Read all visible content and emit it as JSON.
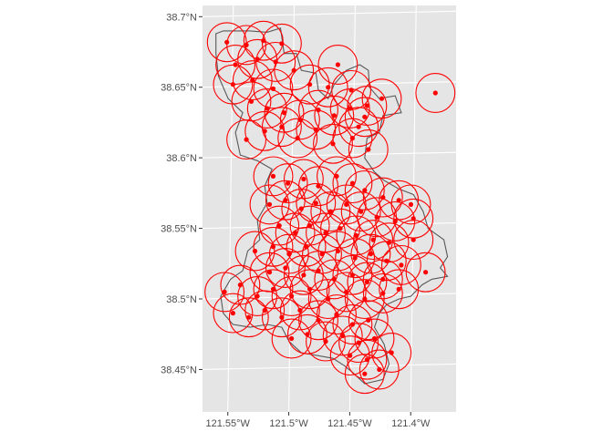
{
  "map": {
    "panel_background": "#e5e5e5",
    "grid_color": "#ffffff",
    "boundary_color": "#595959",
    "marker_color": "#ff0000",
    "y_ticks": [
      {
        "value": 38.7,
        "label": "38.7°N"
      },
      {
        "value": 38.65,
        "label": "38.65°N"
      },
      {
        "value": 38.6,
        "label": "38.6°N"
      },
      {
        "value": 38.55,
        "label": "38.55°N"
      },
      {
        "value": 38.5,
        "label": "38.5°N"
      },
      {
        "value": 38.45,
        "label": "38.45°N"
      }
    ],
    "x_ticks": [
      {
        "value": -121.55,
        "label": "121.55°W"
      },
      {
        "value": -121.5,
        "label": "121.5°W"
      },
      {
        "value": -121.45,
        "label": "121.45°W"
      },
      {
        "value": -121.4,
        "label": "121.4°W"
      }
    ],
    "lon_range": [
      -121.573,
      -121.365
    ],
    "lat_range": [
      38.418,
      38.706
    ],
    "buffer_radius_deg": 0.016,
    "sites": [
      [
        -121.553,
        38.68
      ],
      [
        -121.537,
        38.678
      ],
      [
        -121.523,
        38.681
      ],
      [
        -121.508,
        38.679
      ],
      [
        -121.546,
        38.664
      ],
      [
        -121.528,
        38.668
      ],
      [
        -121.513,
        38.666
      ],
      [
        -121.548,
        38.65
      ],
      [
        -121.532,
        38.653
      ],
      [
        -121.515,
        38.647
      ],
      [
        -121.498,
        38.66
      ],
      [
        -121.485,
        38.65
      ],
      [
        -121.462,
        38.664
      ],
      [
        -121.47,
        38.648
      ],
      [
        -121.451,
        38.646
      ],
      [
        -121.438,
        38.635
      ],
      [
        -121.426,
        38.64
      ],
      [
        -121.382,
        38.644
      ],
      [
        -121.533,
        38.638
      ],
      [
        -121.52,
        38.633
      ],
      [
        -121.506,
        38.63
      ],
      [
        -121.493,
        38.625
      ],
      [
        -121.478,
        38.632
      ],
      [
        -121.465,
        38.628
      ],
      [
        -121.452,
        38.633
      ],
      [
        -121.44,
        38.627
      ],
      [
        -121.537,
        38.611
      ],
      [
        -121.522,
        38.617
      ],
      [
        -121.508,
        38.62
      ],
      [
        -121.495,
        38.612
      ],
      [
        -121.48,
        38.618
      ],
      [
        -121.466,
        38.608
      ],
      [
        -121.45,
        38.612
      ],
      [
        -121.437,
        38.604
      ],
      [
        -121.445,
        38.62
      ],
      [
        -121.515,
        38.585
      ],
      [
        -121.503,
        38.58
      ],
      [
        -121.49,
        38.583
      ],
      [
        -121.478,
        38.578
      ],
      [
        -121.463,
        38.585
      ],
      [
        -121.45,
        38.58
      ],
      [
        -121.44,
        38.575
      ],
      [
        -121.425,
        38.57
      ],
      [
        -121.412,
        38.568
      ],
      [
        -121.402,
        38.565
      ],
      [
        -121.518,
        38.565
      ],
      [
        -121.505,
        38.568
      ],
      [
        -121.492,
        38.562
      ],
      [
        -121.48,
        38.566
      ],
      [
        -121.468,
        38.56
      ],
      [
        -121.455,
        38.565
      ],
      [
        -121.443,
        38.56
      ],
      [
        -121.43,
        38.556
      ],
      [
        -121.415,
        38.553
      ],
      [
        -121.4,
        38.555
      ],
      [
        -121.51,
        38.55
      ],
      [
        -121.497,
        38.545
      ],
      [
        -121.485,
        38.55
      ],
      [
        -121.472,
        38.545
      ],
      [
        -121.46,
        38.548
      ],
      [
        -121.447,
        38.543
      ],
      [
        -121.433,
        38.54
      ],
      [
        -121.42,
        38.538
      ],
      [
        -121.4,
        38.54
      ],
      [
        -121.53,
        38.532
      ],
      [
        -121.515,
        38.535
      ],
      [
        -121.502,
        38.53
      ],
      [
        -121.488,
        38.535
      ],
      [
        -121.475,
        38.53
      ],
      [
        -121.462,
        38.532
      ],
      [
        -121.448,
        38.527
      ],
      [
        -121.435,
        38.53
      ],
      [
        -121.422,
        38.525
      ],
      [
        -121.41,
        38.522
      ],
      [
        -121.39,
        38.517
      ],
      [
        -121.518,
        38.517
      ],
      [
        -121.505,
        38.52
      ],
      [
        -121.49,
        38.515
      ],
      [
        -121.478,
        38.518
      ],
      [
        -121.465,
        38.512
      ],
      [
        -121.45,
        38.515
      ],
      [
        -121.438,
        38.51
      ],
      [
        -121.425,
        38.512
      ],
      [
        -121.412,
        38.505
      ],
      [
        -121.555,
        38.503
      ],
      [
        -121.542,
        38.508
      ],
      [
        -121.528,
        38.5
      ],
      [
        -121.515,
        38.505
      ],
      [
        -121.5,
        38.5
      ],
      [
        -121.485,
        38.505
      ],
      [
        -121.47,
        38.498
      ],
      [
        -121.455,
        38.503
      ],
      [
        -121.44,
        38.498
      ],
      [
        -121.425,
        38.502
      ],
      [
        -121.548,
        38.488
      ],
      [
        -121.535,
        38.485
      ],
      [
        -121.522,
        38.49
      ],
      [
        -121.508,
        38.485
      ],
      [
        -121.493,
        38.49
      ],
      [
        -121.478,
        38.483
      ],
      [
        -121.463,
        38.487
      ],
      [
        -121.45,
        38.48
      ],
      [
        -121.437,
        38.483
      ],
      [
        -121.5,
        38.47
      ],
      [
        -121.487,
        38.473
      ],
      [
        -121.472,
        38.468
      ],
      [
        -121.458,
        38.472
      ],
      [
        -121.445,
        38.467
      ],
      [
        -121.432,
        38.47
      ],
      [
        -121.438,
        38.455
      ],
      [
        -121.428,
        38.448
      ],
      [
        -121.44,
        38.445
      ],
      [
        -121.452,
        38.458
      ],
      [
        -121.418,
        38.46
      ]
    ],
    "boundary": [
      [
        -121.562,
        38.686
      ],
      [
        -121.556,
        38.688
      ],
      [
        -121.534,
        38.688
      ],
      [
        -121.52,
        38.687
      ],
      [
        -121.509,
        38.69
      ],
      [
        -121.506,
        38.672
      ],
      [
        -121.496,
        38.672
      ],
      [
        -121.492,
        38.66
      ],
      [
        -121.48,
        38.658
      ],
      [
        -121.478,
        38.646
      ],
      [
        -121.47,
        38.64
      ],
      [
        -121.465,
        38.65
      ],
      [
        -121.455,
        38.66
      ],
      [
        -121.444,
        38.664
      ],
      [
        -121.437,
        38.66
      ],
      [
        -121.436,
        38.648
      ],
      [
        -121.428,
        38.64
      ],
      [
        -121.415,
        38.642
      ],
      [
        -121.41,
        38.63
      ],
      [
        -121.425,
        38.628
      ],
      [
        -121.428,
        38.616
      ],
      [
        -121.438,
        38.612
      ],
      [
        -121.44,
        38.598
      ],
      [
        -121.432,
        38.588
      ],
      [
        -121.424,
        38.582
      ],
      [
        -121.412,
        38.576
      ],
      [
        -121.4,
        38.572
      ],
      [
        -121.392,
        38.56
      ],
      [
        -121.388,
        38.548
      ],
      [
        -121.375,
        38.54
      ],
      [
        -121.372,
        38.528
      ],
      [
        -121.378,
        38.52
      ],
      [
        -121.372,
        38.514
      ],
      [
        -121.385,
        38.512
      ],
      [
        -121.393,
        38.508
      ],
      [
        -121.402,
        38.5
      ],
      [
        -121.412,
        38.498
      ],
      [
        -121.422,
        38.494
      ],
      [
        -121.428,
        38.488
      ],
      [
        -121.432,
        38.478
      ],
      [
        -121.424,
        38.466
      ],
      [
        -121.42,
        38.452
      ],
      [
        -121.425,
        38.441
      ],
      [
        -121.44,
        38.438
      ],
      [
        -121.45,
        38.446
      ],
      [
        -121.457,
        38.451
      ],
      [
        -121.466,
        38.456
      ],
      [
        -121.479,
        38.458
      ],
      [
        -121.492,
        38.46
      ],
      [
        -121.502,
        38.468
      ],
      [
        -121.508,
        38.478
      ],
      [
        -121.52,
        38.48
      ],
      [
        -121.534,
        38.478
      ],
      [
        -121.548,
        38.48
      ],
      [
        -121.556,
        38.488
      ],
      [
        -121.558,
        38.5
      ],
      [
        -121.55,
        38.512
      ],
      [
        -121.54,
        38.518
      ],
      [
        -121.536,
        38.532
      ],
      [
        -121.526,
        38.54
      ],
      [
        -121.528,
        38.554
      ],
      [
        -121.52,
        38.566
      ],
      [
        -121.522,
        38.578
      ],
      [
        -121.516,
        38.59
      ],
      [
        -121.528,
        38.596
      ],
      [
        -121.542,
        38.6
      ],
      [
        -121.546,
        38.616
      ],
      [
        -121.54,
        38.63
      ],
      [
        -121.552,
        38.64
      ],
      [
        -121.56,
        38.656
      ],
      [
        -121.562,
        38.672
      ]
    ]
  }
}
